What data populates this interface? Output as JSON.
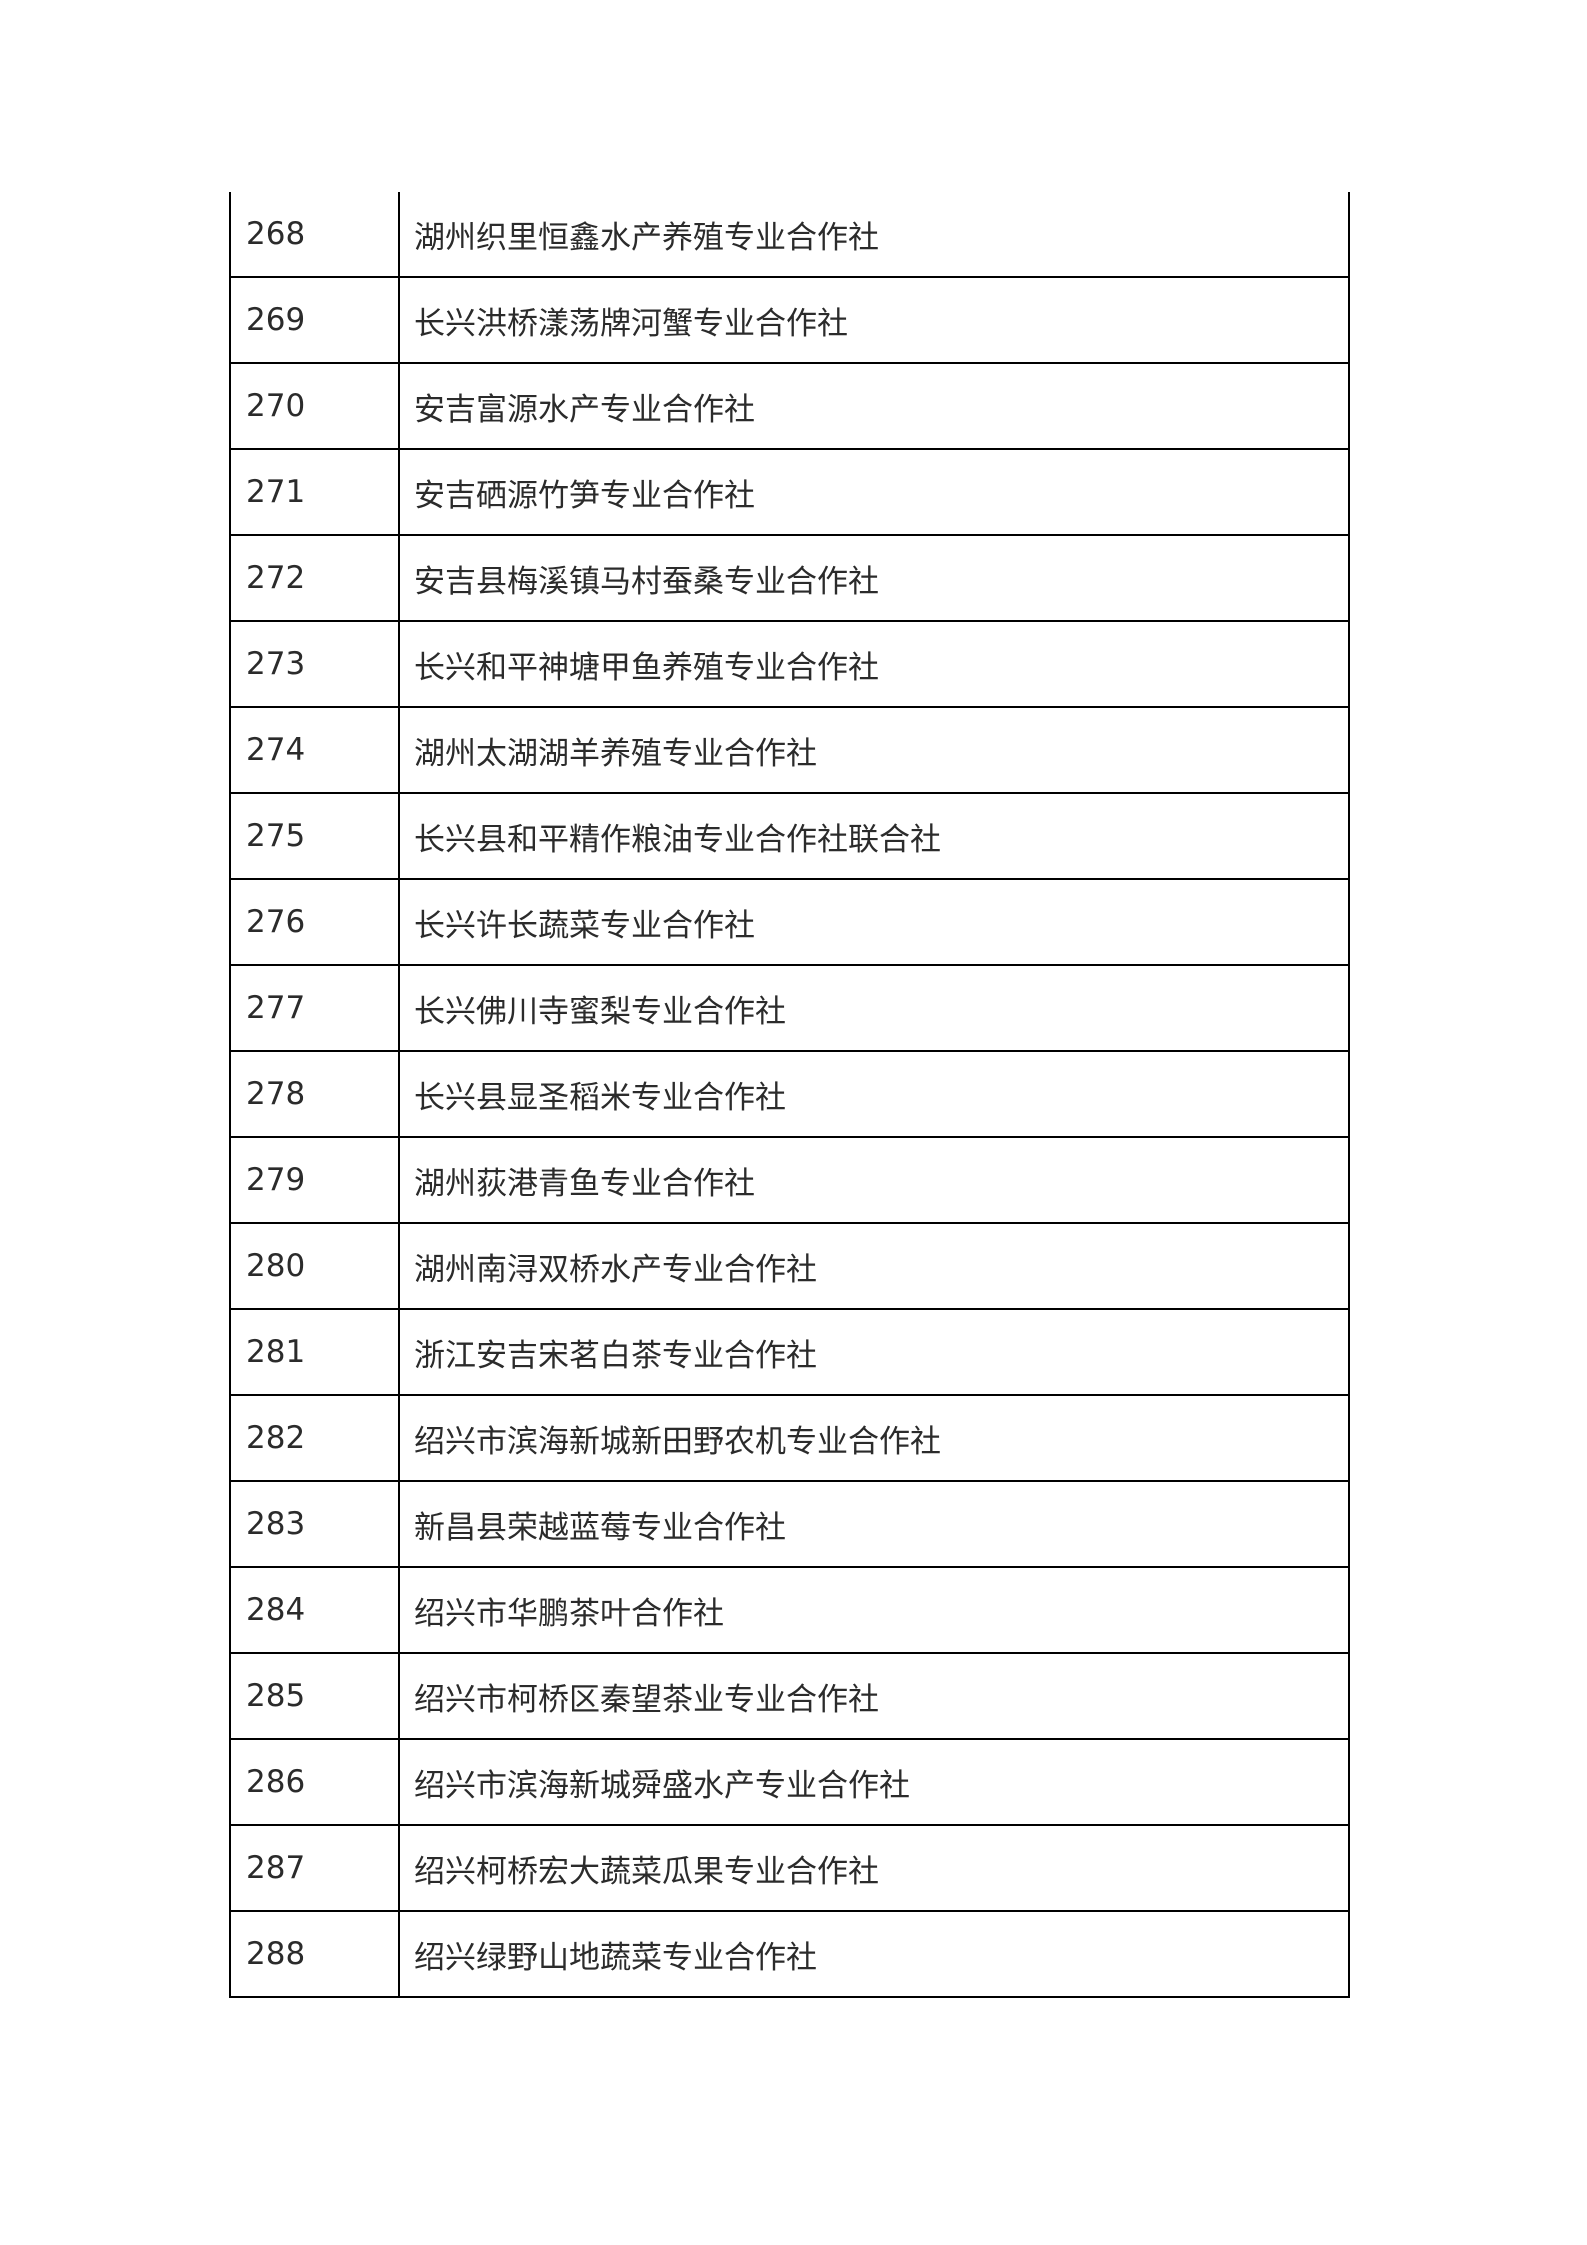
{
  "table": {
    "rows": [
      {
        "no": "268",
        "name": "湖州织里恒鑫水产养殖专业合作社"
      },
      {
        "no": "269",
        "name": "长兴洪桥漾荡牌河蟹专业合作社"
      },
      {
        "no": "270",
        "name": "安吉富源水产专业合作社"
      },
      {
        "no": "271",
        "name": "安吉硒源竹笋专业合作社"
      },
      {
        "no": "272",
        "name": "安吉县梅溪镇马村蚕桑专业合作社"
      },
      {
        "no": "273",
        "name": "长兴和平神塘甲鱼养殖专业合作社"
      },
      {
        "no": "274",
        "name": "湖州太湖湖羊养殖专业合作社"
      },
      {
        "no": "275",
        "name": "长兴县和平精作粮油专业合作社联合社"
      },
      {
        "no": "276",
        "name": "长兴许长蔬菜专业合作社"
      },
      {
        "no": "277",
        "name": "长兴佛川寺蜜梨专业合作社"
      },
      {
        "no": "278",
        "name": "长兴县显圣稻米专业合作社"
      },
      {
        "no": "279",
        "name": "湖州荻港青鱼专业合作社"
      },
      {
        "no": "280",
        "name": "湖州南浔双桥水产专业合作社"
      },
      {
        "no": "281",
        "name": "浙江安吉宋茗白茶专业合作社"
      },
      {
        "no": "282",
        "name": "绍兴市滨海新城新田野农机专业合作社"
      },
      {
        "no": "283",
        "name": "新昌县荣越蓝莓专业合作社"
      },
      {
        "no": "284",
        "name": "绍兴市华鹏茶叶合作社"
      },
      {
        "no": "285",
        "name": "绍兴市柯桥区秦望茶业专业合作社"
      },
      {
        "no": "286",
        "name": "绍兴市滨海新城舜盛水产专业合作社"
      },
      {
        "no": "287",
        "name": "绍兴柯桥宏大蔬菜瓜果专业合作社"
      },
      {
        "no": "288",
        "name": "绍兴绿野山地蔬菜专业合作社"
      }
    ]
  }
}
